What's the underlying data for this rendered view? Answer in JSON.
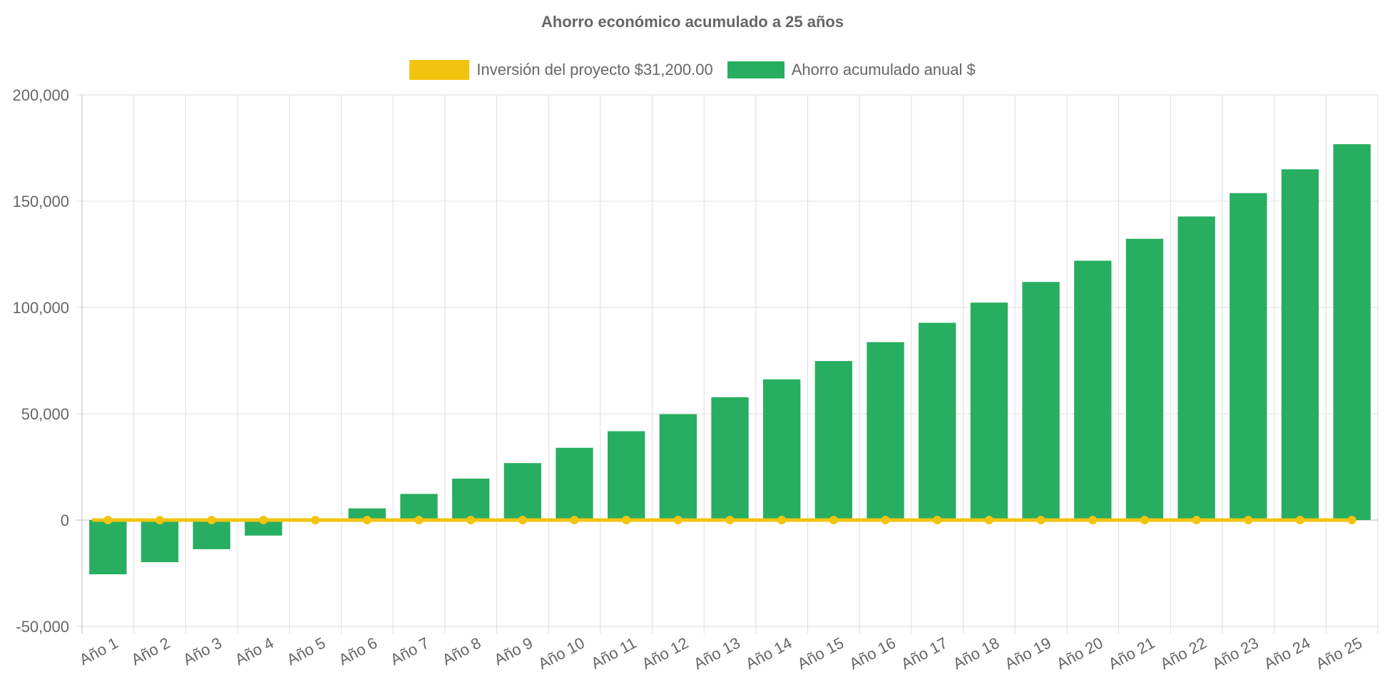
{
  "chart_data": {
    "type": "bar",
    "title": "Ahorro económico acumulado a 25 años",
    "categories": [
      "Año 1",
      "Año 2",
      "Año 3",
      "Año 4",
      "Año 5",
      "Año 6",
      "Año 7",
      "Año 8",
      "Año 9",
      "Año 10",
      "Año 11",
      "Año 12",
      "Año 13",
      "Año 14",
      "Año 15",
      "Año 16",
      "Año 17",
      "Año 18",
      "Año 19",
      "Año 20",
      "Año 21",
      "Año 22",
      "Año 23",
      "Año 24",
      "Año 25"
    ],
    "series": [
      {
        "name": "Inversión del proyecto $31,200.00",
        "type": "line",
        "color": "#f2c40f",
        "values": [
          0,
          0,
          0,
          0,
          0,
          0,
          0,
          0,
          0,
          0,
          0,
          0,
          0,
          0,
          0,
          0,
          0,
          0,
          0,
          0,
          0,
          0,
          0,
          0,
          0
        ]
      },
      {
        "name": "Ahorro acumulado anual $",
        "type": "bar",
        "color": "#27ae60",
        "values": [
          -25500,
          -19800,
          -13700,
          -7300,
          -100,
          5500,
          12300,
          19500,
          26800,
          34000,
          41800,
          49800,
          57800,
          66200,
          74800,
          83700,
          92800,
          102300,
          112000,
          122000,
          132300,
          142800,
          153800,
          165000,
          176800
        ]
      }
    ],
    "ylim": [
      -50000,
      200000
    ],
    "yticks": [
      "200,000",
      "150,000",
      "100,000",
      "50,000",
      "0",
      "-50,000"
    ],
    "ytick_values": [
      200000,
      150000,
      100000,
      50000,
      0,
      -50000
    ],
    "legend_position": "top",
    "grid": true
  }
}
